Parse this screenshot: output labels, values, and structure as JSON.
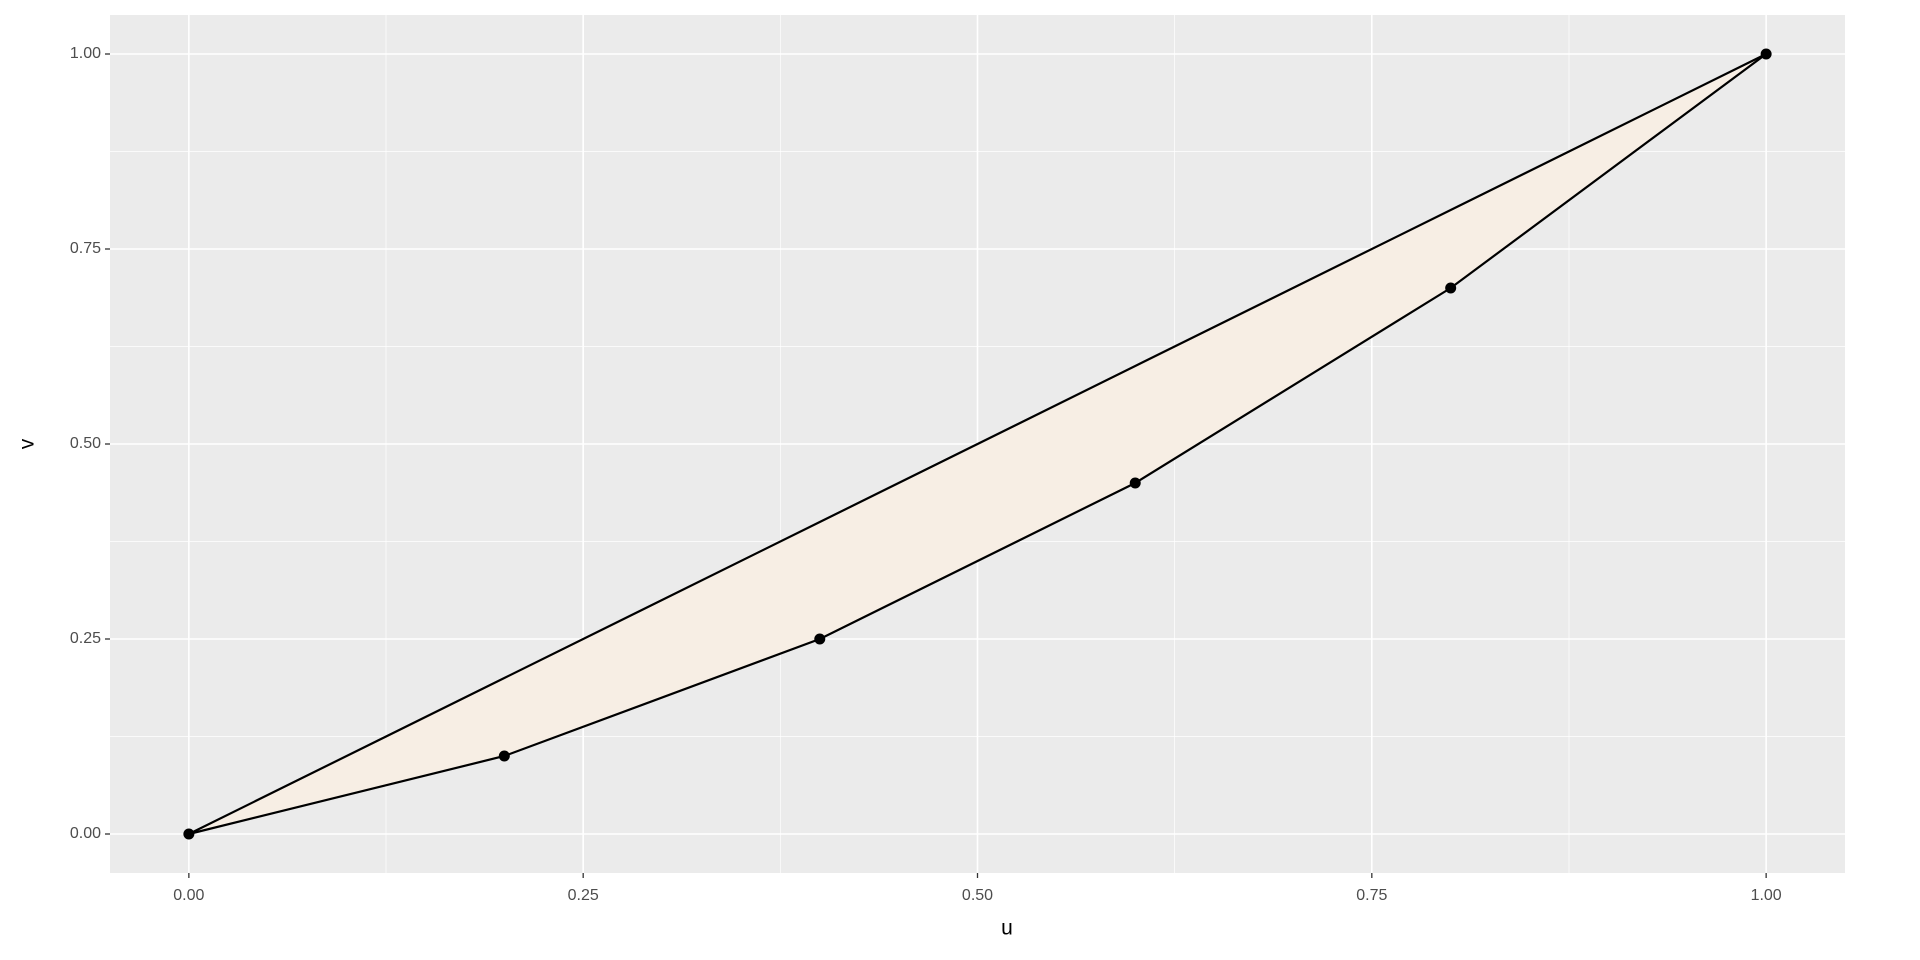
{
  "chart_data": {
    "type": "line",
    "x": [
      0,
      0.2,
      0.4,
      0.6,
      0.8,
      1
    ],
    "series": [
      {
        "color": "#000000",
        "values": [
          0,
          0.2,
          0.4,
          0.6,
          0.8,
          1
        ],
        "markers": false
      },
      {
        "color": "#000000",
        "values": [
          0,
          0.1,
          0.25,
          0.45,
          0.7,
          1
        ],
        "markers": true
      }
    ],
    "fill_between": {
      "color": "#f7eee4"
    },
    "x_label": "u",
    "y_label": "v",
    "xlim": [
      -0.05,
      1.05
    ],
    "ylim": [
      -0.05,
      1.05
    ],
    "xticks": [
      {
        "value": 0,
        "label": "0.00"
      },
      {
        "value": 0.25,
        "label": "0.25"
      },
      {
        "value": 0.5,
        "label": "0.50"
      },
      {
        "value": 0.75,
        "label": "0.75"
      },
      {
        "value": 1,
        "label": "1.00"
      }
    ],
    "yticks": [
      {
        "value": 0,
        "label": "0.00"
      },
      {
        "value": 0.25,
        "label": "0.25"
      },
      {
        "value": 0.5,
        "label": "0.50"
      },
      {
        "value": 0.75,
        "label": "0.75"
      },
      {
        "value": 1,
        "label": "1.00"
      }
    ],
    "x_minor_ticks": [
      0.125,
      0.375,
      0.625,
      0.875
    ],
    "y_minor_ticks": [
      0.125,
      0.375,
      0.625,
      0.875
    ],
    "grid": true,
    "panel_color": "#ebebeb"
  }
}
